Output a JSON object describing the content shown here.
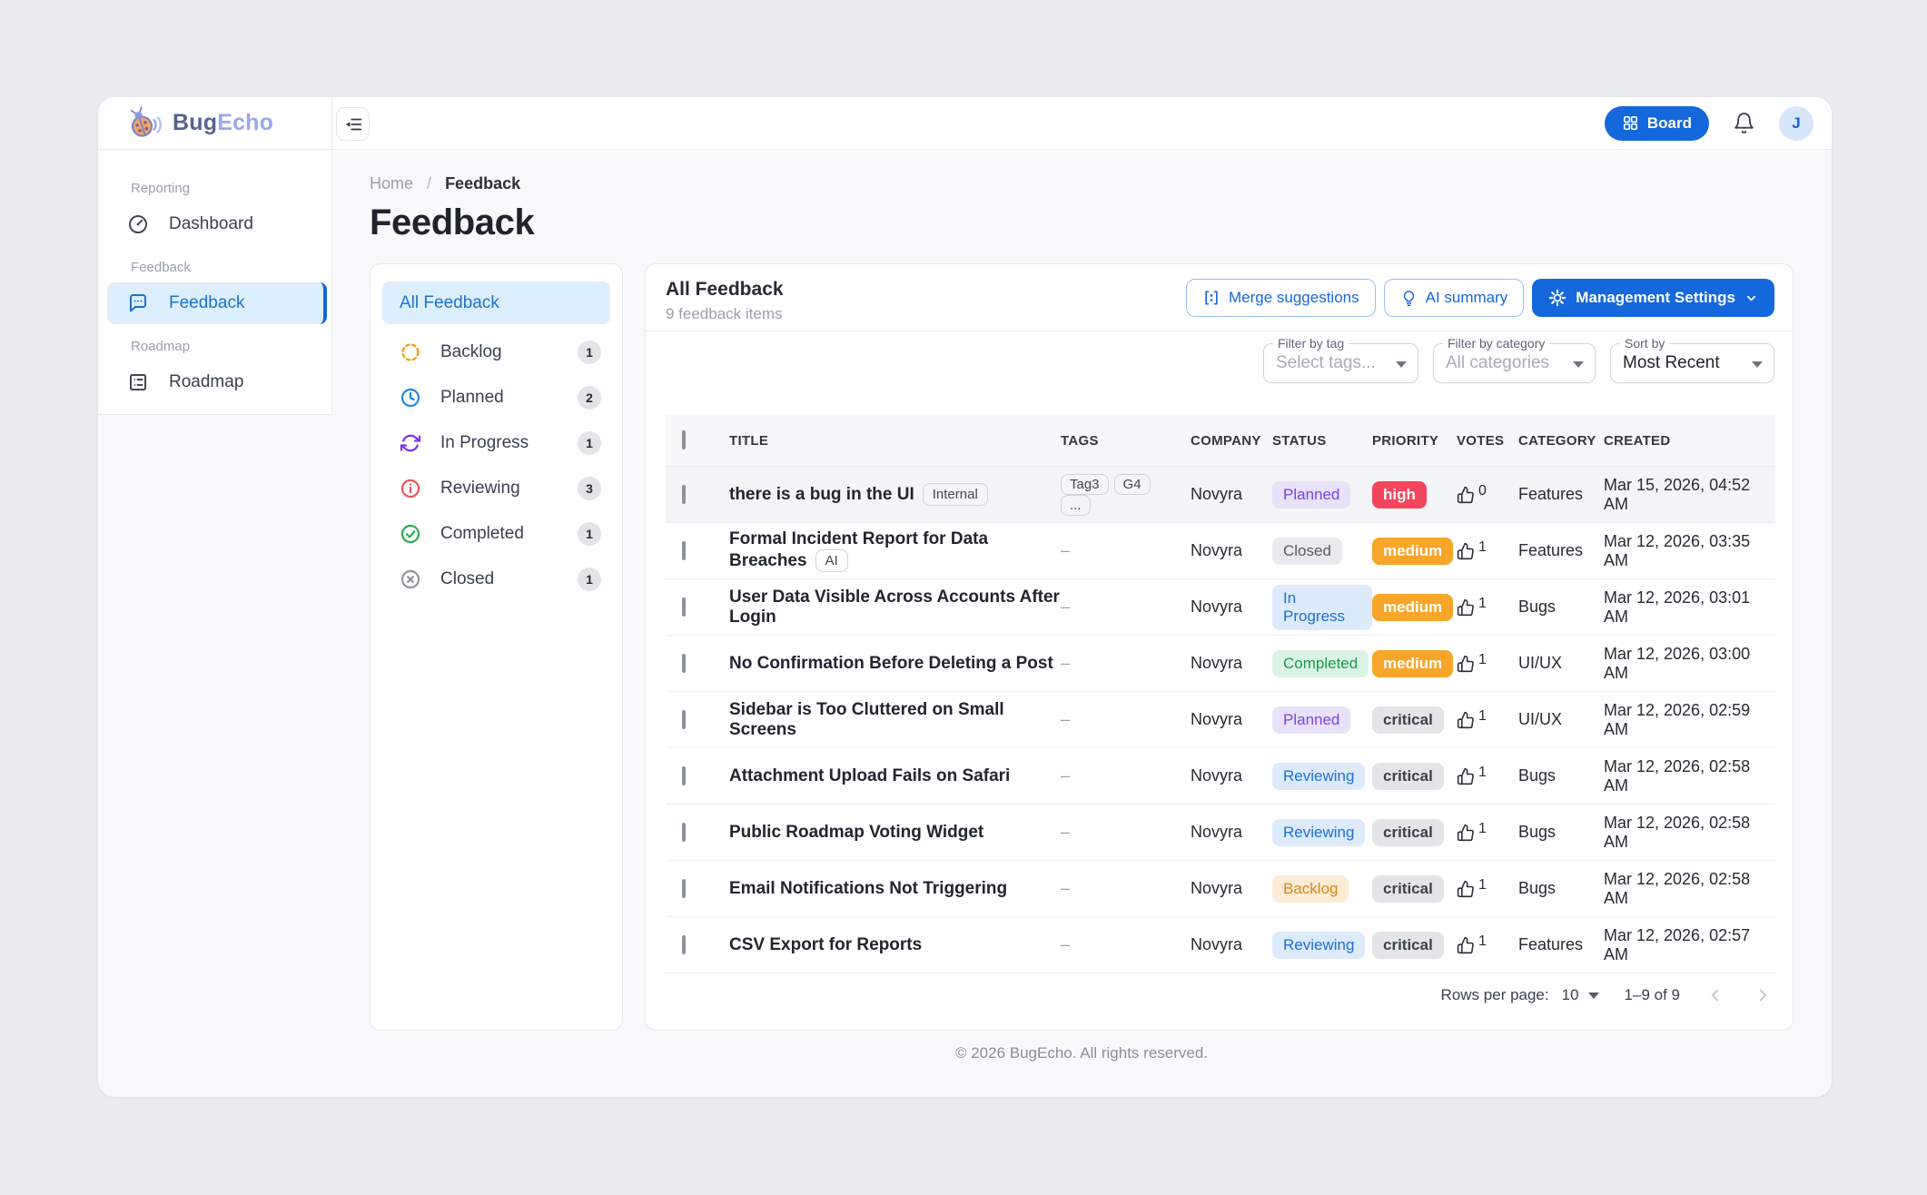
{
  "brand": {
    "first": "Bug",
    "second": "Echo"
  },
  "header": {
    "board_label": "Board",
    "avatar_initial": "J"
  },
  "sidebar": {
    "sections": [
      {
        "label": "Reporting",
        "items": [
          {
            "label": "Dashboard",
            "icon": "dashboard-icon",
            "active": false
          }
        ]
      },
      {
        "label": "Feedback",
        "items": [
          {
            "label": "Feedback",
            "icon": "feedback-icon",
            "active": true
          }
        ]
      },
      {
        "label": "Roadmap",
        "items": [
          {
            "label": "Roadmap",
            "icon": "roadmap-icon",
            "active": false
          }
        ]
      }
    ]
  },
  "breadcrumb": {
    "home": "Home",
    "separator": "/",
    "current": "Feedback"
  },
  "page_title": "Feedback",
  "status_panel": {
    "all_label": "All Feedback",
    "items": [
      {
        "label": "Backlog",
        "count": "1",
        "icon": "backlog-icon",
        "color": "#f0a11a"
      },
      {
        "label": "Planned",
        "count": "2",
        "icon": "planned-icon",
        "color": "#1e88e5"
      },
      {
        "label": "In Progress",
        "count": "1",
        "icon": "in-progress-icon",
        "color": "#7c3aed"
      },
      {
        "label": "Reviewing",
        "count": "3",
        "icon": "reviewing-icon",
        "color": "#ef5060"
      },
      {
        "label": "Completed",
        "count": "1",
        "icon": "completed-icon",
        "color": "#2eab4e"
      },
      {
        "label": "Closed",
        "count": "1",
        "icon": "closed-icon",
        "color": "#8f969e"
      }
    ]
  },
  "toolbar": {
    "title": "All Feedback",
    "subtitle": "9 feedback items",
    "merge_label": "Merge suggestions",
    "ai_label": "AI summary",
    "settings_label": "Management Settings"
  },
  "filters": {
    "tag": {
      "label": "Filter by tag",
      "value": "Select tags...",
      "placeholder": true
    },
    "category": {
      "label": "Filter by category",
      "value": "All categories",
      "placeholder": true
    },
    "sort": {
      "label": "Sort by",
      "value": "Most Recent",
      "placeholder": false
    }
  },
  "table": {
    "columns": [
      "TITLE",
      "TAGS",
      "COMPANY",
      "STATUS",
      "PRIORITY",
      "VOTES",
      "CATEGORY",
      "CREATED"
    ],
    "tags_placeholder": "–",
    "rows": [
      {
        "title": "there is a bug in the UI",
        "title_chip": "Internal",
        "tags": [
          "Tag3",
          "G4",
          "..."
        ],
        "company": "Novyra",
        "status": "Planned",
        "priority": "high",
        "votes": "0",
        "category": "Features",
        "created": "Mar 15, 2026, 04:52 AM",
        "highlighted": true
      },
      {
        "title": "Formal Incident Report for Data Breaches",
        "title_chip": "AI",
        "tags": null,
        "company": "Novyra",
        "status": "Closed",
        "priority": "medium",
        "votes": "1",
        "category": "Features",
        "created": "Mar 12, 2026, 03:35 AM",
        "highlighted": false
      },
      {
        "title": "User Data Visible Across Accounts After Login",
        "title_chip": null,
        "tags": null,
        "company": "Novyra",
        "status": "In Progress",
        "priority": "medium",
        "votes": "1",
        "category": "Bugs",
        "created": "Mar 12, 2026, 03:01 AM",
        "highlighted": false
      },
      {
        "title": "No Confirmation Before Deleting a Post",
        "title_chip": null,
        "tags": null,
        "company": "Novyra",
        "status": "Completed",
        "priority": "medium",
        "votes": "1",
        "category": "UI/UX",
        "created": "Mar 12, 2026, 03:00 AM",
        "highlighted": false
      },
      {
        "title": "Sidebar is Too Cluttered on Small Screens",
        "title_chip": null,
        "tags": null,
        "company": "Novyra",
        "status": "Planned",
        "priority": "critical",
        "votes": "1",
        "category": "UI/UX",
        "created": "Mar 12, 2026, 02:59 AM",
        "highlighted": false
      },
      {
        "title": "Attachment Upload Fails on Safari",
        "title_chip": null,
        "tags": null,
        "company": "Novyra",
        "status": "Reviewing",
        "priority": "critical",
        "votes": "1",
        "category": "Bugs",
        "created": "Mar 12, 2026, 02:58 AM",
        "highlighted": false
      },
      {
        "title": "Public Roadmap Voting Widget",
        "title_chip": null,
        "tags": null,
        "company": "Novyra",
        "status": "Reviewing",
        "priority": "critical",
        "votes": "1",
        "category": "Bugs",
        "created": "Mar 12, 2026, 02:58 AM",
        "highlighted": false
      },
      {
        "title": "Email Notifications Not Triggering",
        "title_chip": null,
        "tags": null,
        "company": "Novyra",
        "status": "Backlog",
        "priority": "critical",
        "votes": "1",
        "category": "Bugs",
        "created": "Mar 12, 2026, 02:58 AM",
        "highlighted": false
      },
      {
        "title": "CSV Export for Reports",
        "title_chip": null,
        "tags": null,
        "company": "Novyra",
        "status": "Reviewing",
        "priority": "critical",
        "votes": "1",
        "category": "Features",
        "created": "Mar 12, 2026, 02:57 AM",
        "highlighted": false
      }
    ]
  },
  "status_colors": {
    "Planned": {
      "bg": "#e7e1fa",
      "fg": "#7b45e0"
    },
    "Closed": {
      "bg": "#e9eaed",
      "fg": "#555c66"
    },
    "In Progress": {
      "bg": "#dceafc",
      "fg": "#1d6fd6"
    },
    "Completed": {
      "bg": "#dcf3e4",
      "fg": "#199a4c"
    },
    "Reviewing": {
      "bg": "#dceafc",
      "fg": "#1d6fd6"
    },
    "Backlog": {
      "bg": "#fcecd6",
      "fg": "#dd8718"
    }
  },
  "priority_colors": {
    "high": {
      "bg": "#f5455c",
      "fg": "#ffffff"
    },
    "medium": {
      "bg": "#f7a62a",
      "fg": "#ffffff"
    },
    "critical": {
      "bg": "#e3e5e8",
      "fg": "#3d434c"
    }
  },
  "accent_color": "#1568dc",
  "pagination": {
    "rows_per_page_label": "Rows per page:",
    "rows_per_page_value": "10",
    "range_label": "1–9 of 9"
  },
  "footer": "© 2026 BugEcho. All rights reserved."
}
